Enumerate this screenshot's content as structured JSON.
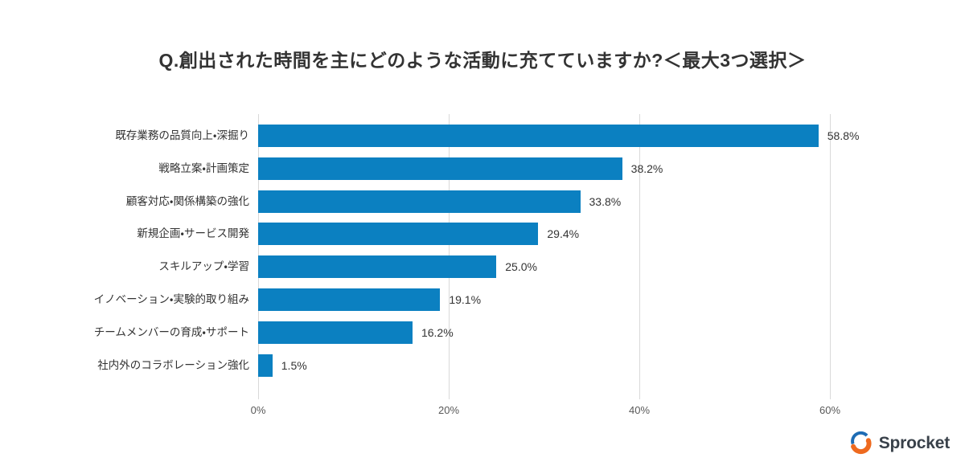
{
  "chart_data": {
    "type": "bar",
    "orientation": "horizontal",
    "title": "Q.創出された時間を主にどのような活動に充てていますか?＜最大3つ選択＞",
    "categories": [
      "既存業務の品質向上・深掘り",
      "戦略立案・計画策定",
      "顧客対応・関係構築の強化",
      "新規企画・サービス開発",
      "スキルアップ・学習",
      "イノベーション・実験的取り組み",
      "チームメンバーの育成・サポート",
      "社内外のコラボレーション強化"
    ],
    "values": [
      58.8,
      38.2,
      33.8,
      29.4,
      25.0,
      19.1,
      16.2,
      1.5
    ],
    "value_labels": [
      "58.8%",
      "38.2%",
      "33.8%",
      "29.4%",
      "25.0%",
      "19.1%",
      "16.2%",
      "1.5%"
    ],
    "xlabel": "",
    "ylabel": "",
    "xlim": [
      0,
      60
    ],
    "xticks": [
      0,
      20,
      40,
      60
    ],
    "xtick_labels": [
      "0%",
      "20%",
      "40%",
      "60%"
    ],
    "grid": "vertical",
    "legend": "none"
  },
  "colors": {
    "bar": "#0b80c1",
    "grid": "#d9d9d9",
    "title_text": "#333333",
    "label_text": "#333333",
    "tick_text": "#595959",
    "logo_text": "#39414a",
    "logo_blue": "#1e6cb4",
    "logo_orange": "#ee6a1f",
    "background": "#ffffff"
  },
  "footer": {
    "logo_text": "Sprocket"
  }
}
